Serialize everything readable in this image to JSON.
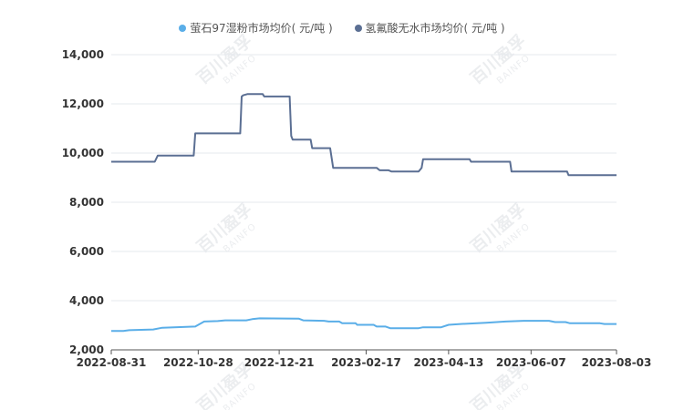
{
  "chart_data": {
    "type": "line",
    "title": "",
    "xlabel": "",
    "ylabel": "",
    "ylim": [
      2000,
      14000
    ],
    "y_ticks": [
      "2,000",
      "4,000",
      "6,000",
      "8,000",
      "10,000",
      "12,000",
      "14,000"
    ],
    "x_tick_labels": [
      "2022-08-31",
      "2022-10-28",
      "2022-12-21",
      "2023-02-17",
      "2023-04-13",
      "2023-06-07",
      "2023-08-03"
    ],
    "x_tick_days": [
      0,
      58,
      112,
      170,
      225,
      280,
      337
    ],
    "grid": true,
    "legend_position": "top-center",
    "series": [
      {
        "name": "萤石97湿粉市场均价( 元/吨 )",
        "color": "#5aaee8",
        "points": [
          [
            0,
            2770
          ],
          [
            8,
            2770
          ],
          [
            12,
            2800
          ],
          [
            28,
            2830
          ],
          [
            34,
            2900
          ],
          [
            56,
            2950
          ],
          [
            62,
            3150
          ],
          [
            71,
            3170
          ],
          [
            76,
            3200
          ],
          [
            90,
            3200
          ],
          [
            94,
            3250
          ],
          [
            99,
            3280
          ],
          [
            125,
            3270
          ],
          [
            128,
            3200
          ],
          [
            142,
            3180
          ],
          [
            145,
            3150
          ],
          [
            152,
            3150
          ],
          [
            154,
            3080
          ],
          [
            163,
            3080
          ],
          [
            164,
            3020
          ],
          [
            175,
            3020
          ],
          [
            177,
            2950
          ],
          [
            183,
            2950
          ],
          [
            186,
            2880
          ],
          [
            205,
            2880
          ],
          [
            208,
            2920
          ],
          [
            220,
            2920
          ],
          [
            225,
            3020
          ],
          [
            233,
            3050
          ],
          [
            250,
            3100
          ],
          [
            263,
            3150
          ],
          [
            275,
            3180
          ],
          [
            292,
            3180
          ],
          [
            296,
            3130
          ],
          [
            303,
            3130
          ],
          [
            306,
            3080
          ],
          [
            326,
            3080
          ],
          [
            329,
            3050
          ],
          [
            337,
            3050
          ]
        ]
      },
      {
        "name": "氢氟酸无水市场均价( 元/吨 )",
        "color": "#5b6f93",
        "points": [
          [
            0,
            9650
          ],
          [
            29,
            9650
          ],
          [
            31,
            9900
          ],
          [
            55,
            9900
          ],
          [
            56,
            10800
          ],
          [
            86,
            10800
          ],
          [
            87,
            12300
          ],
          [
            88,
            12350
          ],
          [
            91,
            12400
          ],
          [
            101,
            12400
          ],
          [
            102,
            12300
          ],
          [
            119,
            12300
          ],
          [
            120,
            10700
          ],
          [
            121,
            10550
          ],
          [
            133,
            10550
          ],
          [
            134,
            10200
          ],
          [
            146,
            10200
          ],
          [
            148,
            9400
          ],
          [
            177,
            9400
          ],
          [
            179,
            9300
          ],
          [
            185,
            9300
          ],
          [
            187,
            9250
          ],
          [
            205,
            9250
          ],
          [
            207,
            9400
          ],
          [
            208,
            9750
          ],
          [
            239,
            9750
          ],
          [
            240,
            9650
          ],
          [
            266,
            9650
          ],
          [
            267,
            9250
          ],
          [
            304,
            9250
          ],
          [
            305,
            9100
          ],
          [
            337,
            9100
          ]
        ]
      }
    ]
  },
  "watermark": {
    "main": "百川盈孚",
    "sub": "BAINFO"
  }
}
